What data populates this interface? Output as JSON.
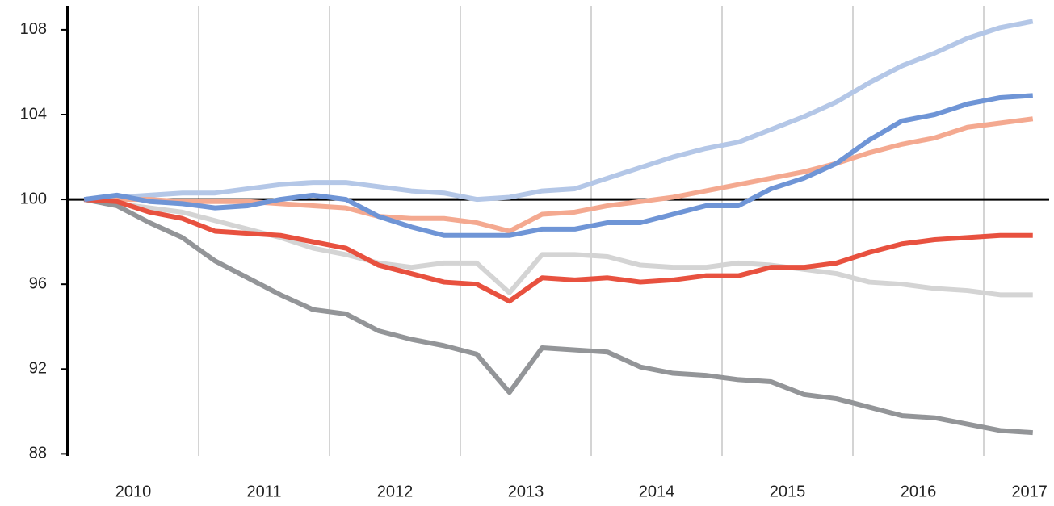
{
  "chart_data": {
    "type": "line",
    "x": [
      2010.125,
      2010.375,
      2010.625,
      2010.875,
      2011.125,
      2011.375,
      2011.625,
      2011.875,
      2012.125,
      2012.375,
      2012.625,
      2012.875,
      2013.125,
      2013.375,
      2013.625,
      2013.875,
      2014.125,
      2014.375,
      2014.625,
      2014.875,
      2015.125,
      2015.375,
      2015.625,
      2015.875,
      2016.125,
      2016.375,
      2016.625,
      2016.875,
      2017.125,
      2017.375
    ],
    "series": [
      {
        "color": "#b4c7e7",
        "values": [
          100,
          100.1,
          100.2,
          100.3,
          100.3,
          100.5,
          100.7,
          100.8,
          100.8,
          100.6,
          100.4,
          100.3,
          100.0,
          100.1,
          100.4,
          100.5,
          101.0,
          101.5,
          102.0,
          102.4,
          102.7,
          103.3,
          103.9,
          104.6,
          105.5,
          106.3,
          106.9,
          107.6,
          108.1,
          108.4
        ]
      },
      {
        "color": "#d4d4d4",
        "values": [
          100,
          99.8,
          99.6,
          99.4,
          99.0,
          98.6,
          98.2,
          97.7,
          97.4,
          97.0,
          96.8,
          97.0,
          97.0,
          95.6,
          97.4,
          97.4,
          97.3,
          96.9,
          96.8,
          96.8,
          97.0,
          96.9,
          96.7,
          96.5,
          96.1,
          96.0,
          95.8,
          95.7,
          95.5,
          95.5
        ]
      },
      {
        "color": "#939598",
        "values": [
          100,
          99.7,
          98.9,
          98.2,
          97.1,
          96.3,
          95.5,
          94.8,
          94.6,
          93.8,
          93.4,
          93.1,
          92.7,
          90.9,
          93.0,
          92.9,
          92.8,
          92.1,
          91.8,
          91.7,
          91.5,
          91.4,
          90.8,
          90.6,
          90.2,
          89.8,
          89.7,
          89.4,
          89.1,
          89.0
        ]
      },
      {
        "color": "#f4a990",
        "values": [
          100,
          100.0,
          100.0,
          99.9,
          99.9,
          99.9,
          99.8,
          99.7,
          99.6,
          99.2,
          99.1,
          99.1,
          98.9,
          98.5,
          99.3,
          99.4,
          99.7,
          99.9,
          100.1,
          100.4,
          100.7,
          101.0,
          101.3,
          101.7,
          102.2,
          102.6,
          102.9,
          103.4,
          103.6,
          103.8
        ]
      },
      {
        "color": "#e8513f",
        "values": [
          100,
          99.9,
          99.4,
          99.1,
          98.5,
          98.4,
          98.3,
          98.0,
          97.7,
          96.9,
          96.5,
          96.1,
          96.0,
          95.2,
          96.3,
          96.2,
          96.3,
          96.1,
          96.2,
          96.4,
          96.4,
          96.8,
          96.8,
          97.0,
          97.5,
          97.9,
          98.1,
          98.2,
          98.3,
          98.3
        ]
      },
      {
        "color": "#6f95d6",
        "values": [
          100,
          100.2,
          99.9,
          99.8,
          99.6,
          99.7,
          100.0,
          100.2,
          100.0,
          99.2,
          98.7,
          98.3,
          98.3,
          98.3,
          98.6,
          98.6,
          98.9,
          98.9,
          99.3,
          99.7,
          99.7,
          100.5,
          101.0,
          101.7,
          102.8,
          103.7,
          104.0,
          104.5,
          104.8,
          104.9
        ]
      }
    ],
    "xlim": [
      2010,
      2017.5
    ],
    "xticks": [
      {
        "value": 2010.5,
        "label": "2010"
      },
      {
        "value": 2011.5,
        "label": "2011"
      },
      {
        "value": 2012.5,
        "label": "2012"
      },
      {
        "value": 2013.5,
        "label": "2013"
      },
      {
        "value": 2014.5,
        "label": "2014"
      },
      {
        "value": 2015.5,
        "label": "2015"
      },
      {
        "value": 2016.5,
        "label": "2016"
      },
      {
        "value": 2017.35,
        "label": "2017"
      }
    ],
    "ylim": [
      87.9,
      109.1
    ],
    "yticks": [
      88,
      92,
      96,
      100,
      104,
      108
    ],
    "reference_line": 100,
    "grid": true
  }
}
